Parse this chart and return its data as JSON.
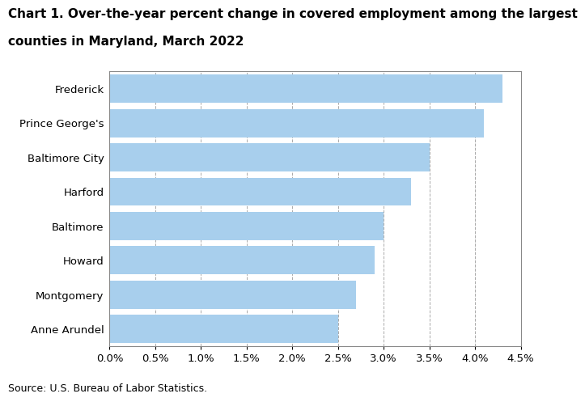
{
  "title_line1": "Chart 1. Over-the-year percent change in covered employment among the largest",
  "title_line2": "counties in Maryland, March 2022",
  "categories": [
    "Anne Arundel",
    "Montgomery",
    "Howard",
    "Baltimore",
    "Harford",
    "Baltimore City",
    "Prince George's",
    "Frederick"
  ],
  "values": [
    0.025,
    0.027,
    0.029,
    0.03,
    0.033,
    0.035,
    0.041,
    0.043
  ],
  "bar_color": "#A8CFED",
  "xlim": [
    0,
    0.045
  ],
  "xticks": [
    0.0,
    0.005,
    0.01,
    0.015,
    0.02,
    0.025,
    0.03,
    0.035,
    0.04,
    0.045
  ],
  "source_text": "Source: U.S. Bureau of Labor Statistics.",
  "title_fontsize": 11,
  "tick_fontsize": 9.5,
  "source_fontsize": 9,
  "bar_height": 0.82,
  "grid_color": "#aaaaaa",
  "background_color": "#ffffff"
}
